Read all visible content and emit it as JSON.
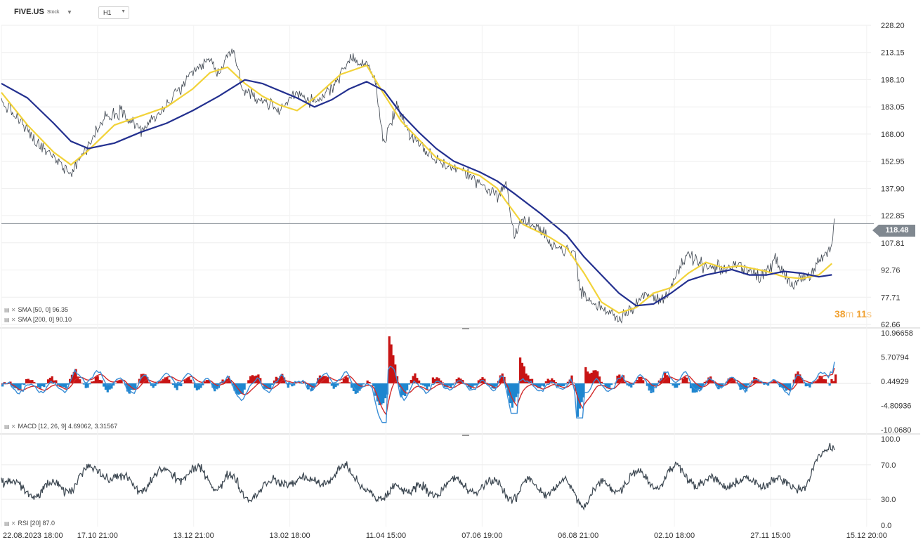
{
  "header": {
    "symbol": "FIVE.US",
    "symbol_type": "Stock",
    "timeframe": "H1"
  },
  "current_price": "118.48",
  "countdown": {
    "minutes": "38",
    "minutes_unit": "m",
    "seconds": "11",
    "seconds_unit": "s"
  },
  "colors": {
    "price_line": "#3e4650",
    "sma50": "#f2d33a",
    "sma200": "#23308f",
    "macd_line": "#3a8ed6",
    "signal_line": "#d22a2a",
    "hist_positive": "#c81414",
    "hist_negative": "#1e86cf",
    "rsi_line": "#3b4650",
    "price_tag": "#808890",
    "countdown": "#f0a030"
  },
  "chart_data": [
    {
      "type": "line",
      "panel": "price",
      "y_ticks": [
        "228.20",
        "213.15",
        "198.10",
        "183.05",
        "168.00",
        "152.95",
        "137.90",
        "122.85",
        "107.81",
        "92.76",
        "77.71",
        "62.66"
      ],
      "ylim": [
        62.66,
        228.2
      ],
      "x_ticks": [
        "22.08.2023  18:00",
        "17.10  21:00",
        "13.12  21:00",
        "13.02  18:00",
        "11.04  15:00",
        "07.06  19:00",
        "06.08  21:00",
        "02.10  18:00",
        "27.11  15:00",
        "15.12  20:00"
      ],
      "last_value": 118.48,
      "price_path": [
        [
          0,
          186
        ],
        [
          0.02,
          176
        ],
        [
          0.04,
          163
        ],
        [
          0.06,
          155
        ],
        [
          0.08,
          147
        ],
        [
          0.1,
          162
        ],
        [
          0.12,
          178
        ],
        [
          0.14,
          181
        ],
        [
          0.16,
          170
        ],
        [
          0.18,
          178
        ],
        [
          0.2,
          190
        ],
        [
          0.22,
          201
        ],
        [
          0.24,
          210
        ],
        [
          0.25,
          200
        ],
        [
          0.265,
          216
        ],
        [
          0.28,
          190
        ],
        [
          0.3,
          187
        ],
        [
          0.32,
          181
        ],
        [
          0.34,
          192
        ],
        [
          0.36,
          184
        ],
        [
          0.38,
          194
        ],
        [
          0.4,
          209
        ],
        [
          0.42,
          207
        ],
        [
          0.43,
          197
        ],
        [
          0.44,
          162
        ],
        [
          0.455,
          185
        ],
        [
          0.47,
          167
        ],
        [
          0.49,
          157
        ],
        [
          0.51,
          151
        ],
        [
          0.53,
          148
        ],
        [
          0.55,
          141
        ],
        [
          0.57,
          134
        ],
        [
          0.58,
          140
        ],
        [
          0.59,
          112
        ],
        [
          0.6,
          121
        ],
        [
          0.62,
          114
        ],
        [
          0.64,
          105
        ],
        [
          0.66,
          102
        ],
        [
          0.665,
          82
        ],
        [
          0.68,
          74
        ],
        [
          0.7,
          70
        ],
        [
          0.71,
          66
        ],
        [
          0.72,
          70
        ],
        [
          0.74,
          79
        ],
        [
          0.76,
          76
        ],
        [
          0.78,
          93
        ],
        [
          0.79,
          101
        ],
        [
          0.81,
          94
        ],
        [
          0.83,
          93
        ],
        [
          0.85,
          96
        ],
        [
          0.87,
          89
        ],
        [
          0.89,
          98
        ],
        [
          0.91,
          84
        ],
        [
          0.92,
          90
        ],
        [
          0.93,
          88
        ],
        [
          0.94,
          97
        ],
        [
          0.955,
          106
        ],
        [
          0.958,
          118.48
        ]
      ],
      "series": [
        {
          "name": "SMA [50, 0] 96.35",
          "values": [
            [
              0,
              191
            ],
            [
              0.03,
              173
            ],
            [
              0.06,
              158
            ],
            [
              0.08,
              151
            ],
            [
              0.1,
              159
            ],
            [
              0.13,
              173
            ],
            [
              0.16,
              178
            ],
            [
              0.19,
              183
            ],
            [
              0.22,
              193
            ],
            [
              0.24,
              202
            ],
            [
              0.26,
              205
            ],
            [
              0.28,
              196
            ],
            [
              0.3,
              189
            ],
            [
              0.32,
              184
            ],
            [
              0.34,
              181
            ],
            [
              0.36,
              188
            ],
            [
              0.39,
              201
            ],
            [
              0.42,
              206
            ],
            [
              0.44,
              190
            ],
            [
              0.46,
              175
            ],
            [
              0.48,
              165
            ],
            [
              0.5,
              155
            ],
            [
              0.52,
              150
            ],
            [
              0.55,
              145
            ],
            [
              0.57,
              138
            ],
            [
              0.58,
              131
            ],
            [
              0.6,
              118
            ],
            [
              0.63,
              111
            ],
            [
              0.65,
              105
            ],
            [
              0.67,
              91
            ],
            [
              0.69,
              75
            ],
            [
              0.71,
              69
            ],
            [
              0.73,
              72
            ],
            [
              0.75,
              80
            ],
            [
              0.77,
              83
            ],
            [
              0.79,
              91
            ],
            [
              0.81,
              97
            ],
            [
              0.83,
              94
            ],
            [
              0.85,
              95
            ],
            [
              0.88,
              92
            ],
            [
              0.9,
              89
            ],
            [
              0.92,
              88
            ],
            [
              0.94,
              90
            ],
            [
              0.955,
              96.35
            ]
          ]
        },
        {
          "name": "SMA [200, 0] 90.10",
          "values": [
            [
              0,
              196
            ],
            [
              0.03,
              188
            ],
            [
              0.06,
              174
            ],
            [
              0.08,
              164
            ],
            [
              0.1,
              160
            ],
            [
              0.13,
              163
            ],
            [
              0.16,
              169
            ],
            [
              0.19,
              174
            ],
            [
              0.22,
              181
            ],
            [
              0.25,
              189
            ],
            [
              0.28,
              198
            ],
            [
              0.3,
              196
            ],
            [
              0.32,
              192
            ],
            [
              0.34,
              188
            ],
            [
              0.36,
              183
            ],
            [
              0.38,
              187
            ],
            [
              0.4,
              193
            ],
            [
              0.42,
              197
            ],
            [
              0.44,
              192
            ],
            [
              0.46,
              179
            ],
            [
              0.48,
              169
            ],
            [
              0.5,
              160
            ],
            [
              0.52,
              153
            ],
            [
              0.55,
              147
            ],
            [
              0.57,
              142
            ],
            [
              0.59,
              135
            ],
            [
              0.62,
              124
            ],
            [
              0.65,
              112
            ],
            [
              0.67,
              100
            ],
            [
              0.69,
              90
            ],
            [
              0.71,
              80
            ],
            [
              0.73,
              73
            ],
            [
              0.75,
              74
            ],
            [
              0.77,
              80
            ],
            [
              0.79,
              87
            ],
            [
              0.81,
              90
            ],
            [
              0.84,
              93
            ],
            [
              0.86,
              90
            ],
            [
              0.88,
              90
            ],
            [
              0.9,
              92
            ],
            [
              0.92,
              91
            ],
            [
              0.94,
              89
            ],
            [
              0.955,
              90.1
            ]
          ]
        }
      ]
    },
    {
      "type": "line",
      "panel": "macd",
      "y_ticks": [
        "10.96658",
        "5.70794",
        "0.44929",
        "-4.80936",
        "-10.0680"
      ],
      "ylim": [
        -10.068,
        10.96658
      ],
      "series": [
        {
          "name": "MACD [12, 26, 9] 4.69062, 3.31567",
          "last_macd": 4.69062,
          "last_signal": 3.31567
        }
      ]
    },
    {
      "type": "line",
      "panel": "rsi",
      "y_ticks": [
        "100.0",
        "70.0",
        "30.0",
        "0.0"
      ],
      "ylim": [
        0,
        100
      ],
      "series": [
        {
          "name": "RSI [20] 87.0",
          "last_value": 87.0
        }
      ]
    }
  ]
}
